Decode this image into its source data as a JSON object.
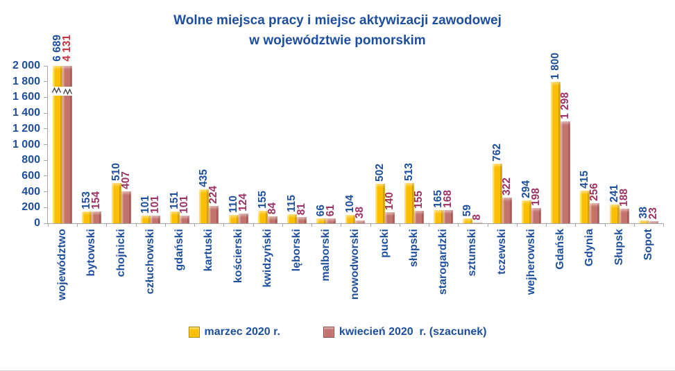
{
  "title": {
    "line1": "Wolne miejsca pracy i miejsc aktywizacji zawodowej",
    "line2": "w województwie pomorskim"
  },
  "chart_data": {
    "type": "bar",
    "title": "Wolne miejsca pracy i miejsc aktywizacji zawodowej w województwie pomorskim",
    "categories": [
      "województwo",
      "bytowski",
      "chojnicki",
      "człuchowski",
      "gdański",
      "kartuski",
      "kościerski",
      "kwidzyński",
      "lęborski",
      "malborski",
      "nowodworski",
      "pucki",
      "słupski",
      "starogardzki",
      "sztumski",
      "tczewski",
      "wejherowski",
      "Gdańsk",
      "Gdynia",
      "Słupsk",
      "Sopot"
    ],
    "series": [
      {
        "name": "marzec 2020 r.",
        "color": "#fcbf00",
        "label_color": "#1d4e9e",
        "values": [
          6689,
          153,
          510,
          101,
          151,
          435,
          110,
          155,
          115,
          66,
          104,
          502,
          513,
          165,
          59,
          762,
          294,
          1800,
          415,
          241,
          38
        ],
        "labels": [
          "6 689",
          "153",
          "510",
          "101",
          "151",
          "435",
          "110",
          "155",
          "115",
          "66",
          "104",
          "502",
          "513",
          "165",
          "59",
          "762",
          "294",
          "1 800",
          "415",
          "241",
          "38"
        ]
      },
      {
        "name": "kwiecień 2020  r. (szacunek)",
        "color": "#c3736e",
        "label_color": "#9c3265",
        "label_color_overrides": {
          "0": "#c5333e"
        },
        "values": [
          4131,
          154,
          407,
          101,
          101,
          224,
          124,
          84,
          81,
          61,
          38,
          140,
          155,
          168,
          8,
          322,
          198,
          1298,
          256,
          188,
          23
        ],
        "labels": [
          "4 131",
          "154",
          "407",
          "101",
          "101",
          "224",
          "124",
          "84",
          "81",
          "61",
          "38",
          "140",
          "155",
          "168",
          "8",
          "322",
          "198",
          "1 298",
          "256",
          "188",
          "23"
        ]
      }
    ],
    "ylim": [
      0,
      2000
    ],
    "yticks": [
      "0",
      "200",
      "400",
      "600",
      "800",
      "1 000",
      "1 200",
      "1 400",
      "1 600",
      "1 800",
      "2 000"
    ],
    "axis_break": {
      "category_index": 0,
      "note": "bars exceed axis maximum, squiggle break drawn on bars"
    },
    "grid": false,
    "legend_position": "bottom",
    "xlabel": "",
    "ylabel": ""
  },
  "colors": {
    "navy_text": "#1d4e9e",
    "plum_text": "#9c3265",
    "red_text": "#c5333e",
    "axis": "#a6a6a6",
    "bar_march": "#fcbf00",
    "bar_april": "#c3736e"
  }
}
